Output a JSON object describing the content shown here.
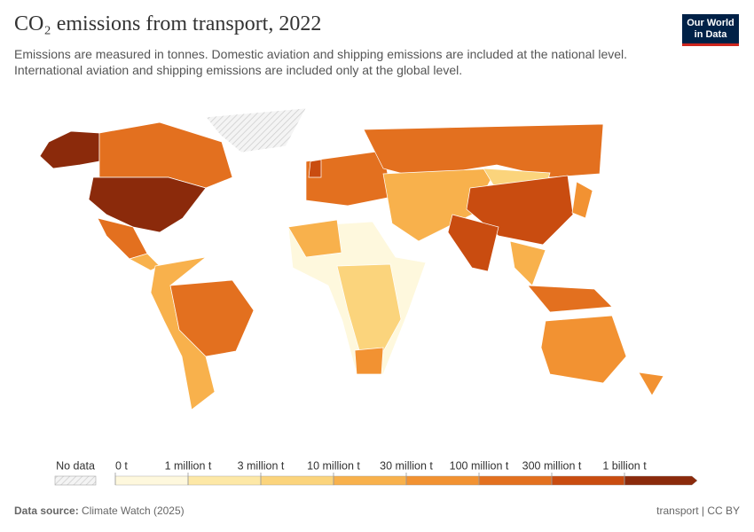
{
  "chart_data": {
    "type": "map",
    "title": "CO₂ emissions from transport, 2022",
    "subtitle": "Emissions are measured in tonnes. Domestic aviation and shipping emissions are included at the national level. International aviation and shipping emissions are included only at the global level.",
    "logo": "Our World in Data",
    "legend": {
      "no_data": "No data",
      "ticks": [
        {
          "value": 0,
          "label": "0 t"
        },
        {
          "value": 1000000,
          "label": "1 million t"
        },
        {
          "value": 3000000,
          "label": "3 million t"
        },
        {
          "value": 10000000,
          "label": "10 million t"
        },
        {
          "value": 30000000,
          "label": "30 million t"
        },
        {
          "value": 100000000,
          "label": "100 million t"
        },
        {
          "value": 300000000,
          "label": "300 million t"
        },
        {
          "value": 1000000000,
          "label": "1 billion t"
        }
      ],
      "colors": [
        "#fef8dd",
        "#fde8a6",
        "#fbd47c",
        "#f8b14c",
        "#f29232",
        "#e3701f",
        "#c94c10",
        "#8b2a0b"
      ]
    },
    "source_label": "Data source:",
    "source": "Climate Watch (2025)",
    "footer_right": "transport | CC BY"
  }
}
